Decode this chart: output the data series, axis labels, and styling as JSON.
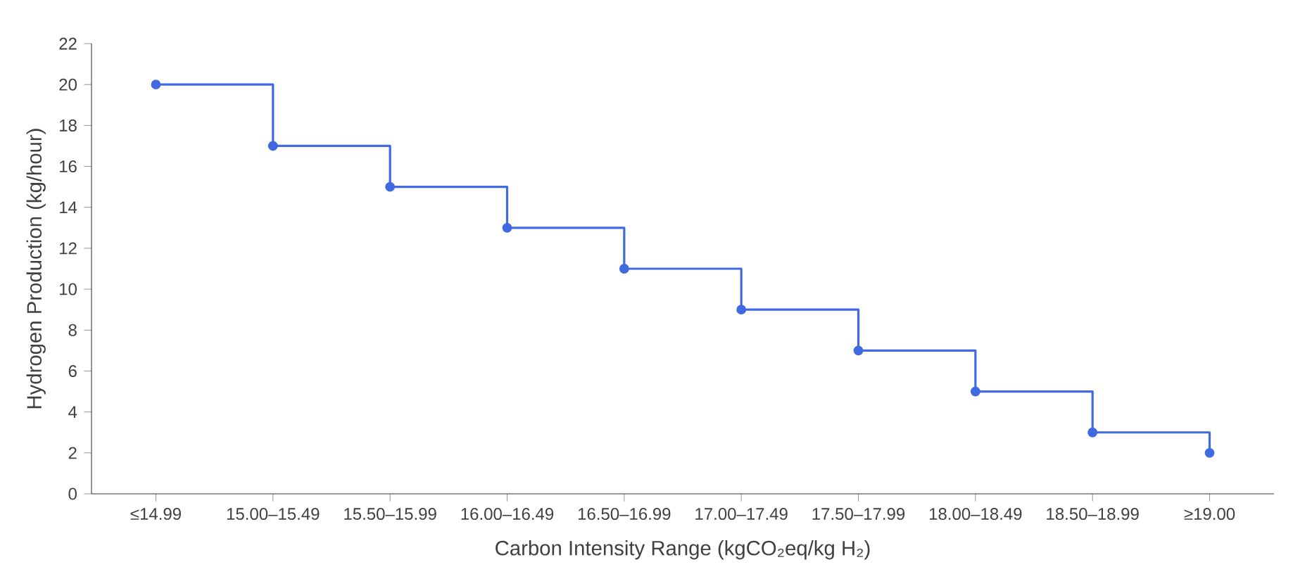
{
  "chart_data": {
    "type": "step",
    "xlabel": "Carbon Intensity Range (kgCO₂eq/kg H₂)",
    "ylabel": "Hydrogen Production (kg/hour)",
    "categories": [
      "≤14.99",
      "15.00–15.49",
      "15.50–15.99",
      "16.00–16.49",
      "16.50–16.99",
      "17.00–17.49",
      "17.50–17.99",
      "18.00–18.49",
      "18.50–18.99",
      "≥19.00"
    ],
    "values": [
      20,
      17,
      15,
      13,
      11,
      9,
      7,
      5,
      3,
      2
    ],
    "color": "#4169e1",
    "marker": "circle",
    "ylim": [
      0,
      22
    ],
    "yticks": [
      0,
      2,
      4,
      6,
      8,
      10,
      12,
      14,
      16,
      18,
      20,
      22
    ]
  }
}
